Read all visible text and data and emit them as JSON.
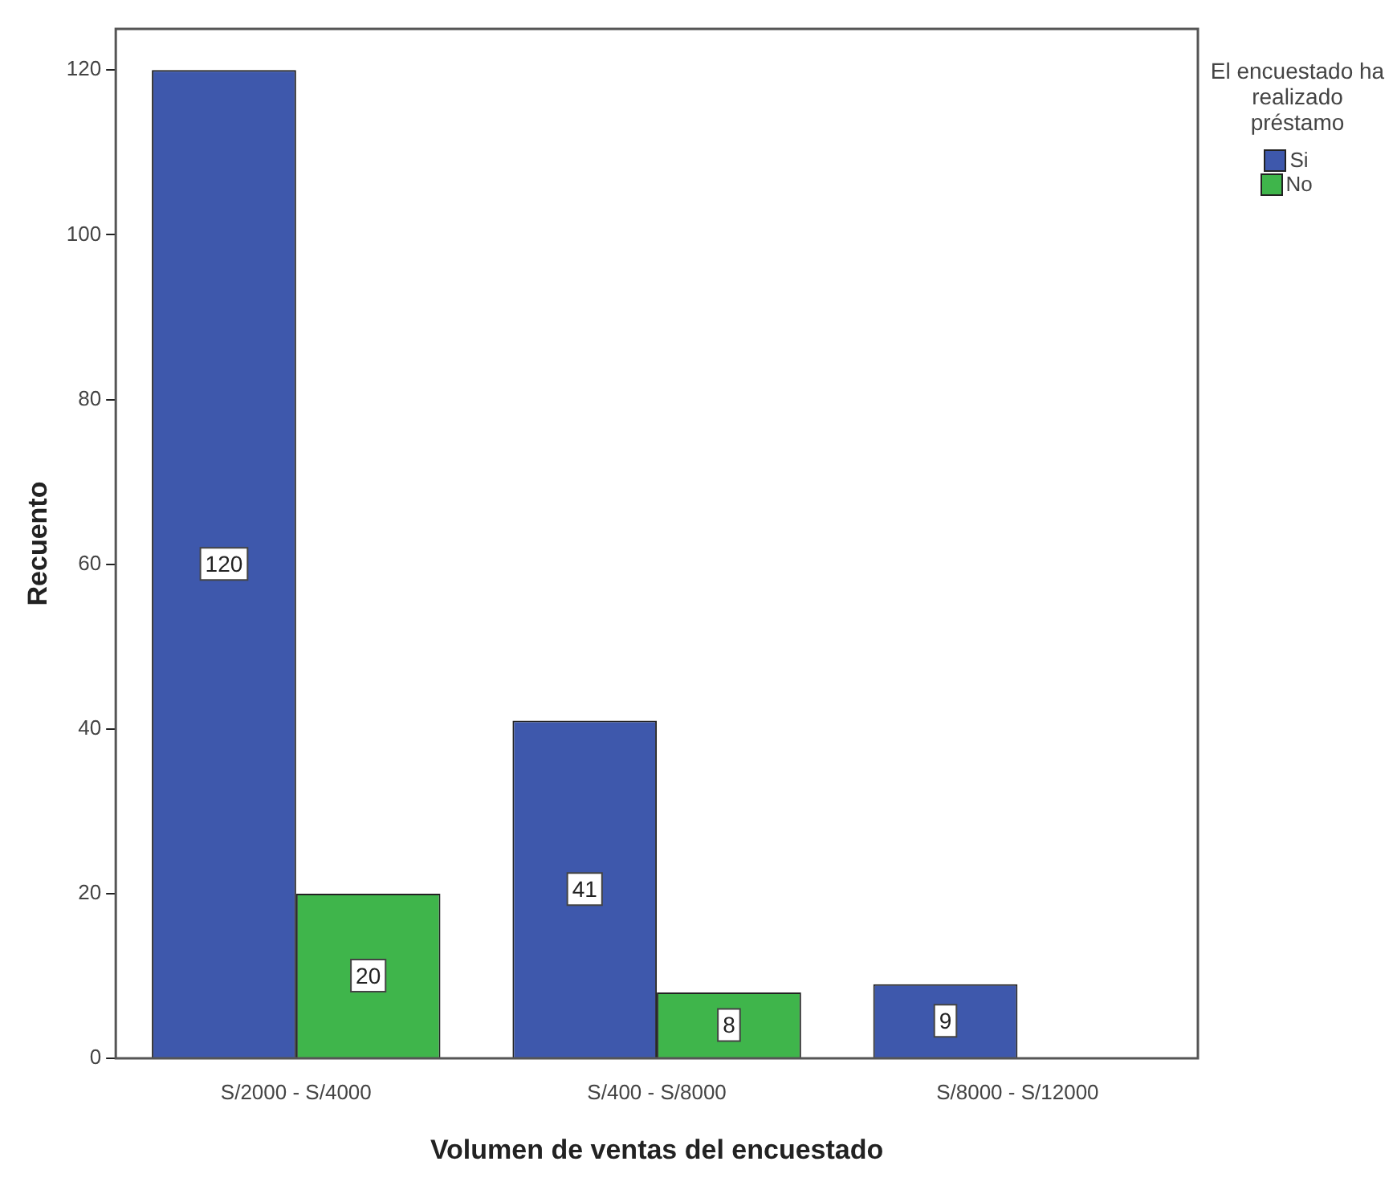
{
  "chart_data": {
    "type": "bar",
    "xlabel": "Volumen de ventas del encuestado",
    "ylabel": "Recuento",
    "legend_title": "El encuestado ha realizado préstamo",
    "categories": [
      "S/2000 - S/4000",
      "S/400 - S/8000",
      "S/8000 - S/12000"
    ],
    "series": [
      {
        "name": "Si",
        "color": "#3e58ac",
        "values": [
          120,
          41,
          9
        ]
      },
      {
        "name": "No",
        "color": "#3fb54b",
        "values": [
          20,
          8,
          null
        ]
      }
    ],
    "ylim": [
      0,
      125
    ],
    "yticks": [
      0,
      20,
      40,
      60,
      80,
      100,
      120
    ],
    "grid": false,
    "legend": "top right",
    "data_labels": true
  }
}
